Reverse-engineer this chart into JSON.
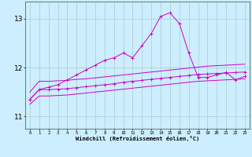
{
  "xlabel": "Windchill (Refroidissement éolien,°C)",
  "bg_color": "#cceeff",
  "grid_color": "#aacccc",
  "line_color": "#cc00cc",
  "x_ticks": [
    0,
    1,
    2,
    3,
    4,
    5,
    6,
    7,
    8,
    9,
    10,
    11,
    12,
    13,
    14,
    15,
    16,
    17,
    18,
    19,
    20,
    21,
    22,
    23
  ],
  "y_ticks": [
    11,
    12,
    13
  ],
  "ylim": [
    10.75,
    13.35
  ],
  "xlim": [
    -0.5,
    23.5
  ],
  "series": {
    "peak_x": [
      0,
      1,
      2,
      3,
      4,
      5,
      6,
      7,
      8,
      9,
      10,
      11,
      12,
      13,
      14,
      15,
      16,
      17,
      18,
      19,
      20,
      21,
      22,
      23
    ],
    "peak_y": [
      11.35,
      11.55,
      11.6,
      11.65,
      11.75,
      11.85,
      11.95,
      12.05,
      12.15,
      12.2,
      12.3,
      12.2,
      12.45,
      12.7,
      13.05,
      13.12,
      12.9,
      12.3,
      11.8,
      11.8,
      11.85,
      11.9,
      11.75,
      11.82
    ],
    "upper_x": [
      0,
      1,
      2,
      3,
      4,
      5,
      6,
      7,
      8,
      9,
      10,
      11,
      12,
      13,
      14,
      15,
      16,
      17,
      18,
      19,
      20,
      21,
      22,
      23
    ],
    "upper_y": [
      11.5,
      11.72,
      11.72,
      11.73,
      11.74,
      11.76,
      11.77,
      11.79,
      11.81,
      11.83,
      11.85,
      11.87,
      11.89,
      11.91,
      11.93,
      11.95,
      11.97,
      11.99,
      12.01,
      12.03,
      12.04,
      12.05,
      12.06,
      12.07
    ],
    "mid_x": [
      0,
      1,
      2,
      3,
      4,
      5,
      6,
      7,
      8,
      9,
      10,
      11,
      12,
      13,
      14,
      15,
      16,
      17,
      18,
      19,
      20,
      21,
      22,
      23
    ],
    "mid_y": [
      11.35,
      11.55,
      11.55,
      11.56,
      11.57,
      11.59,
      11.61,
      11.63,
      11.65,
      11.67,
      11.7,
      11.72,
      11.74,
      11.76,
      11.78,
      11.8,
      11.82,
      11.84,
      11.86,
      11.87,
      11.88,
      11.89,
      11.9,
      11.91
    ],
    "lower_x": [
      0,
      1,
      2,
      3,
      4,
      5,
      6,
      7,
      8,
      9,
      10,
      11,
      12,
      13,
      14,
      15,
      16,
      17,
      18,
      19,
      20,
      21,
      22,
      23
    ],
    "lower_y": [
      11.25,
      11.42,
      11.42,
      11.43,
      11.44,
      11.46,
      11.48,
      11.5,
      11.52,
      11.54,
      11.56,
      11.58,
      11.6,
      11.62,
      11.64,
      11.66,
      11.68,
      11.7,
      11.72,
      11.73,
      11.74,
      11.75,
      11.76,
      11.77
    ]
  }
}
